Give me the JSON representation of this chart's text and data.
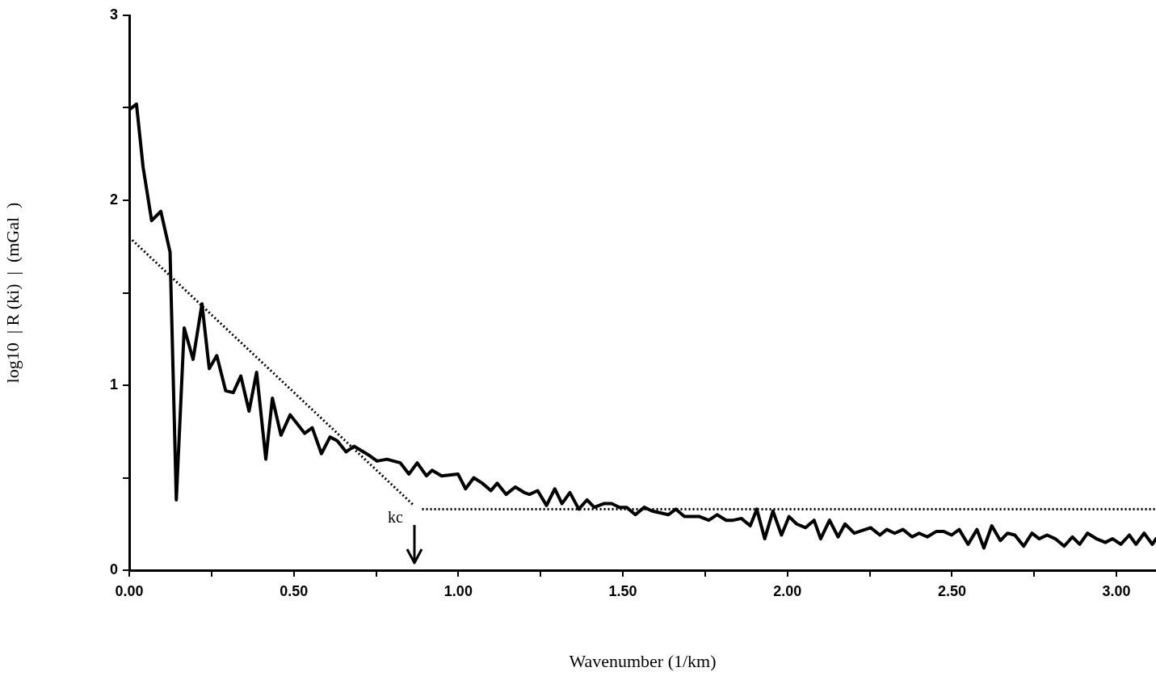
{
  "chart_data": {
    "type": "line",
    "xlabel": "Wavenumber (1/km)",
    "ylabel": "log10  | R (ki)  |  (mGal  )",
    "xlim": [
      0,
      3.12
    ],
    "ylim": [
      0,
      3
    ],
    "xticks": [
      {
        "value": 0,
        "label": "0.00"
      },
      {
        "value": 0.25,
        "label": null
      },
      {
        "value": 0.5,
        "label": "0.50"
      },
      {
        "value": 0.75,
        "label": null
      },
      {
        "value": 1,
        "label": "1.00"
      },
      {
        "value": 1.25,
        "label": null
      },
      {
        "value": 1.5,
        "label": "1.50"
      },
      {
        "value": 1.75,
        "label": null
      },
      {
        "value": 2,
        "label": "2.00"
      },
      {
        "value": 2.25,
        "label": null
      },
      {
        "value": 2.5,
        "label": "2.50"
      },
      {
        "value": 2.75,
        "label": null
      },
      {
        "value": 3,
        "label": "3.00"
      }
    ],
    "yticks": [
      0,
      {
        "value": 0.5,
        "label": null
      },
      1,
      {
        "value": 1.5,
        "label": null
      },
      2,
      {
        "value": 2.5,
        "label": null
      },
      3
    ],
    "marker": "none",
    "legend": false,
    "annotations": [
      "kc"
    ],
    "series": [
      {
        "color": "#000000",
        "line_style": "solid",
        "x": [
          0,
          0.022,
          0.042,
          0.068,
          0.096,
          0.124,
          0.143,
          0.167,
          0.194,
          0.221,
          0.243,
          0.266,
          0.293,
          0.316,
          0.339,
          0.364,
          0.387,
          0.415,
          0.435,
          0.461,
          0.489,
          0.533,
          0.556,
          0.584,
          0.61,
          0.632,
          0.659,
          0.683,
          0.73,
          0.753,
          0.783,
          0.824,
          0.85,
          0.875,
          0.903,
          0.92,
          0.949,
          0.999,
          1.022,
          1.047,
          1.073,
          1.099,
          1.118,
          1.145,
          1.173,
          1.2,
          1.216,
          1.241,
          1.268,
          1.293,
          1.315,
          1.339,
          1.366,
          1.391,
          1.413,
          1.442,
          1.466,
          1.489,
          1.511,
          1.538,
          1.565,
          1.589,
          1.614,
          1.638,
          1.661,
          1.687,
          1.733,
          1.761,
          1.786,
          1.814,
          1.835,
          1.86,
          1.887,
          1.907,
          1.931,
          1.956,
          1.982,
          2.005,
          2.028,
          2.055,
          2.081,
          2.101,
          2.128,
          2.154,
          2.175,
          2.203,
          2.253,
          2.281,
          2.302,
          2.326,
          2.351,
          2.379,
          2.4,
          2.425,
          2.453,
          2.474,
          2.499,
          2.522,
          2.549,
          2.576,
          2.597,
          2.621,
          2.647,
          2.669,
          2.691,
          2.718,
          2.743,
          2.765,
          2.789,
          2.814,
          2.841,
          2.866,
          2.888,
          2.912,
          2.939,
          2.966,
          2.988,
          3.013,
          3.039,
          3.059,
          3.084,
          3.109,
          3.12
        ],
        "values": [
          2.49,
          2.52,
          2.18,
          1.89,
          1.94,
          1.72,
          0.38,
          1.31,
          1.14,
          1.44,
          1.09,
          1.16,
          0.97,
          0.96,
          1.05,
          0.86,
          1.07,
          0.6,
          0.93,
          0.73,
          0.84,
          0.74,
          0.77,
          0.63,
          0.72,
          0.7,
          0.64,
          0.67,
          0.62,
          0.59,
          0.6,
          0.58,
          0.52,
          0.58,
          0.51,
          0.54,
          0.51,
          0.52,
          0.44,
          0.5,
          0.47,
          0.43,
          0.47,
          0.41,
          0.45,
          0.42,
          0.41,
          0.43,
          0.35,
          0.44,
          0.36,
          0.42,
          0.33,
          0.38,
          0.34,
          0.36,
          0.36,
          0.34,
          0.34,
          0.3,
          0.34,
          0.32,
          0.31,
          0.3,
          0.33,
          0.29,
          0.29,
          0.27,
          0.3,
          0.27,
          0.27,
          0.28,
          0.24,
          0.33,
          0.17,
          0.32,
          0.19,
          0.29,
          0.25,
          0.23,
          0.27,
          0.17,
          0.27,
          0.18,
          0.25,
          0.2,
          0.23,
          0.19,
          0.22,
          0.2,
          0.22,
          0.18,
          0.2,
          0.18,
          0.21,
          0.21,
          0.19,
          0.22,
          0.14,
          0.22,
          0.12,
          0.24,
          0.16,
          0.2,
          0.19,
          0.13,
          0.2,
          0.17,
          0.19,
          0.17,
          0.13,
          0.18,
          0.14,
          0.2,
          0.17,
          0.15,
          0.17,
          0.14,
          0.19,
          0.14,
          0.2,
          0.14,
          0.17
        ]
      },
      {
        "color": "#000000",
        "line_style": "dotted",
        "x": [
          0,
          0.865
        ],
        "values": [
          1.8,
          0.35
        ]
      },
      {
        "color": "#000000",
        "line_style": "dotted",
        "x": [
          0.89,
          3.12
        ],
        "values": [
          0.33,
          0.33
        ]
      }
    ]
  }
}
